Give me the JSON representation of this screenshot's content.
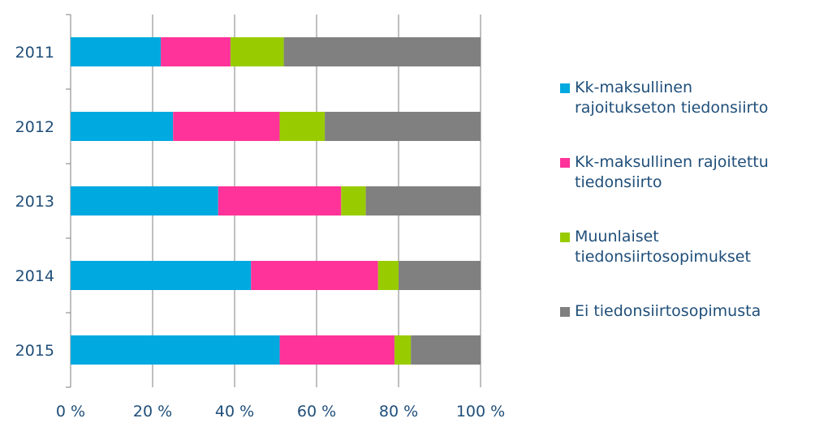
{
  "chart_data": {
    "type": "bar",
    "orientation": "horizontal",
    "stacked": "percent",
    "categories": [
      "2011",
      "2012",
      "2013",
      "2014",
      "2015"
    ],
    "series": [
      {
        "name": "Kk-maksullinen rajoitukseton tiedonsiirto",
        "color": "#00a9e0",
        "values": [
          22,
          25,
          36,
          44,
          51
        ]
      },
      {
        "name": "Kk-maksullinen rajoitettu tiedonsiirto",
        "color": "#ff3399",
        "values": [
          17,
          26,
          30,
          31,
          28
        ]
      },
      {
        "name": "Muunlaiset tiedonsiirtosopimukset",
        "color": "#99cc00",
        "values": [
          13,
          11,
          6,
          5,
          4
        ]
      },
      {
        "name": "Ei tiedonsiirtosopimusta",
        "color": "#808080",
        "values": [
          48,
          38,
          28,
          20,
          17
        ]
      }
    ],
    "xlim": [
      0,
      100
    ],
    "xticks": [
      "0 %",
      "20 %",
      "40 %",
      "60 %",
      "80 %",
      "100 %"
    ],
    "gridlines": true,
    "legend_position": "right"
  }
}
